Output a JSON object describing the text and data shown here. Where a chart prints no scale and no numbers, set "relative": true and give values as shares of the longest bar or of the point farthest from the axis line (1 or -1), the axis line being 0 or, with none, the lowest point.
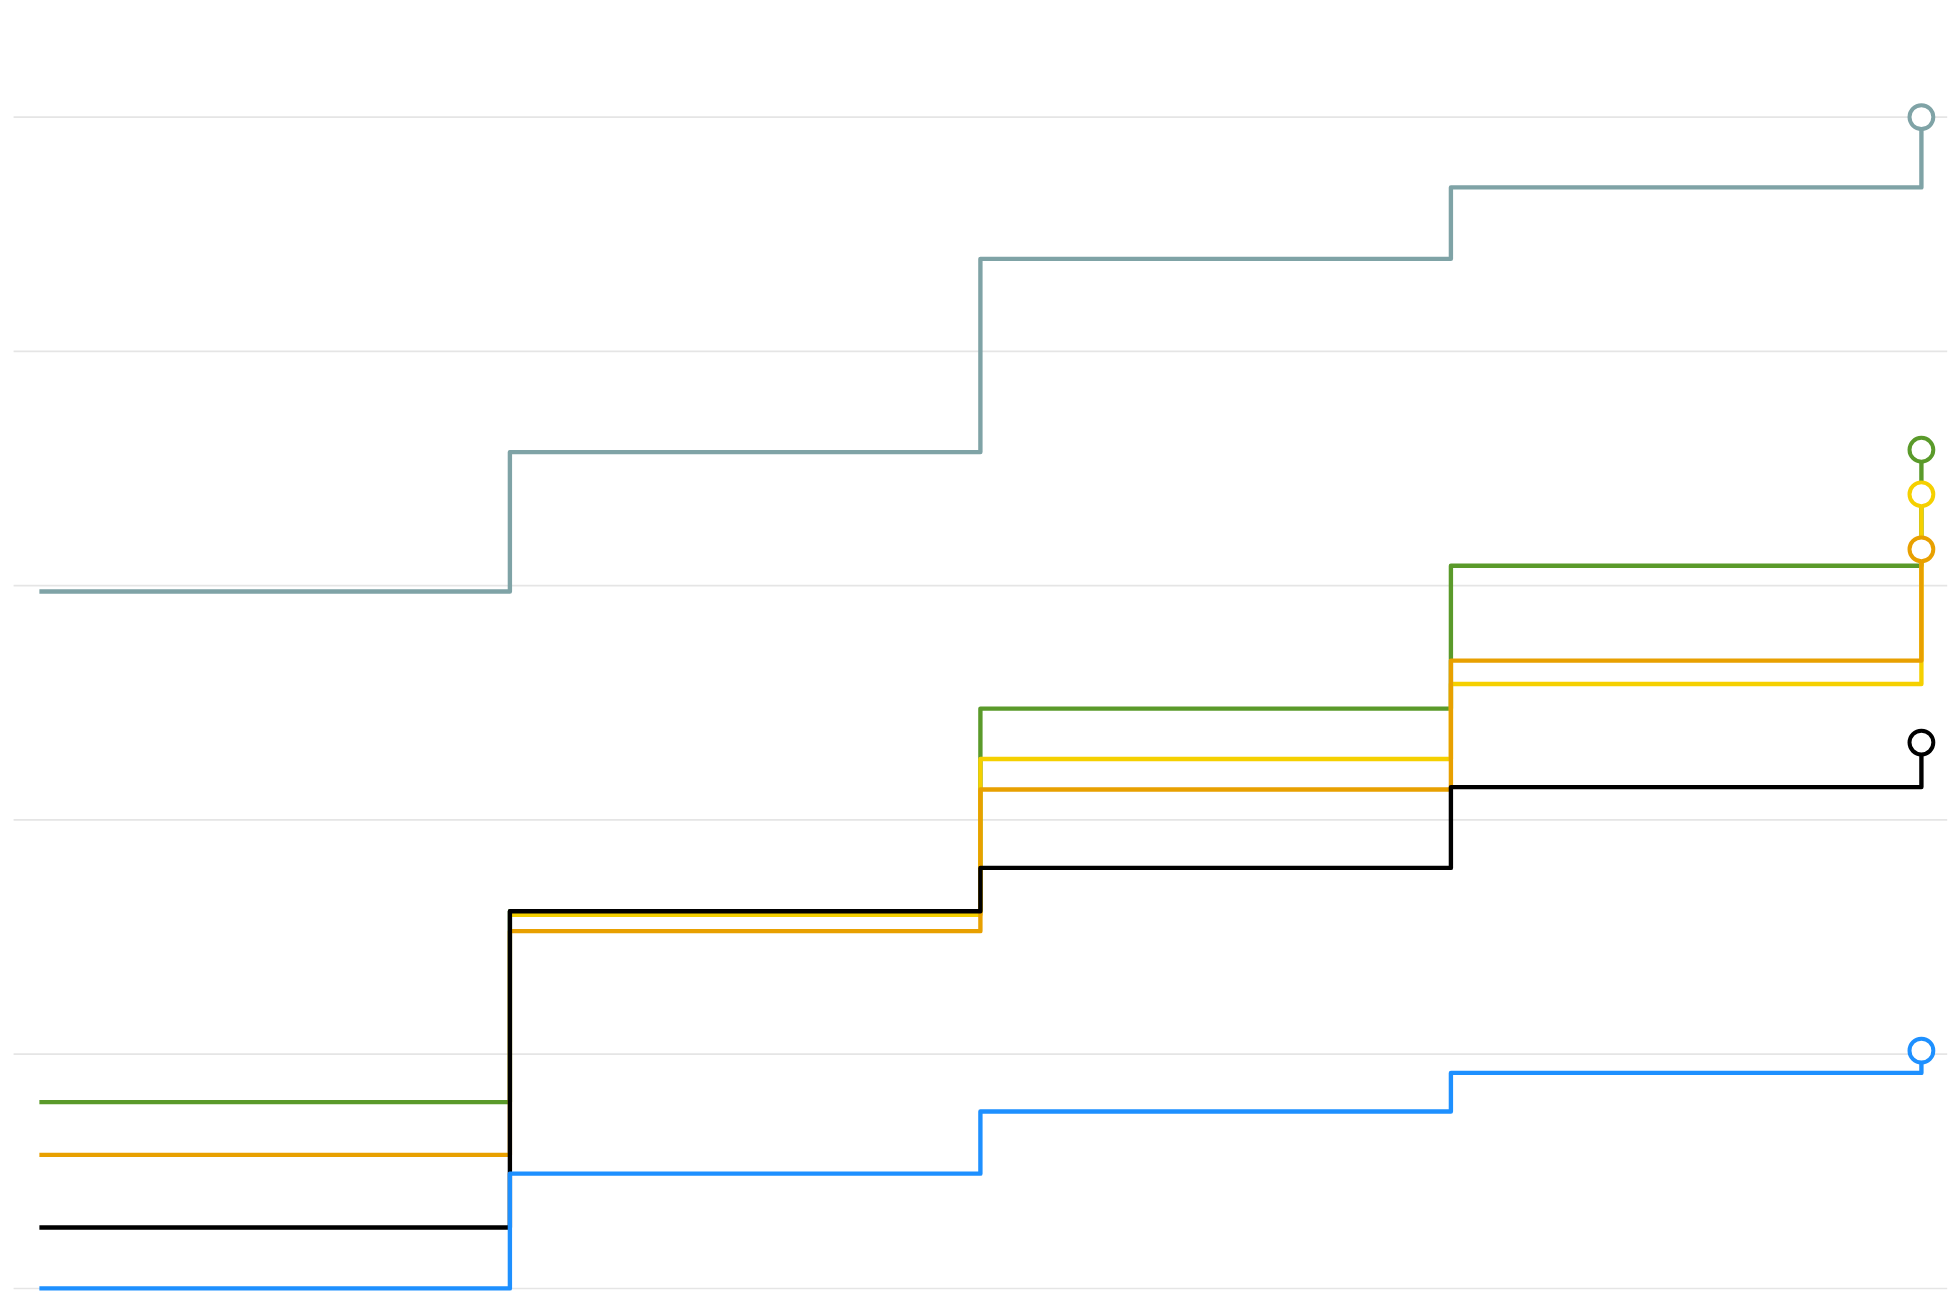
{
  "chart_data": {
    "type": "step",
    "relative": true,
    "grid": "y",
    "line_style": "solid",
    "categories": [
      null,
      null,
      null,
      null,
      null
    ],
    "series": [
      {
        "color": "#7fa3a6",
        "values": [
          0.595,
          0.714,
          0.879,
          0.94,
          1
        ]
      },
      {
        "color": "#5a9a2a",
        "values": [
          0.159,
          0.322,
          0.495,
          0.617,
          0.716
        ]
      },
      {
        "color": "#f5d000",
        "values": [
          null,
          0.319,
          0.452,
          0.516,
          0.678
        ]
      },
      {
        "color": "#e8a000",
        "values": [
          0.114,
          0.305,
          0.426,
          0.536,
          0.631
        ]
      },
      {
        "color": "#000000",
        "values": [
          0.052,
          0.322,
          0.359,
          0.428,
          0.466
        ]
      },
      {
        "color": "#1e90ff",
        "values": [
          0,
          0.098,
          0.151,
          0.184,
          0.203
        ]
      }
    ]
  }
}
